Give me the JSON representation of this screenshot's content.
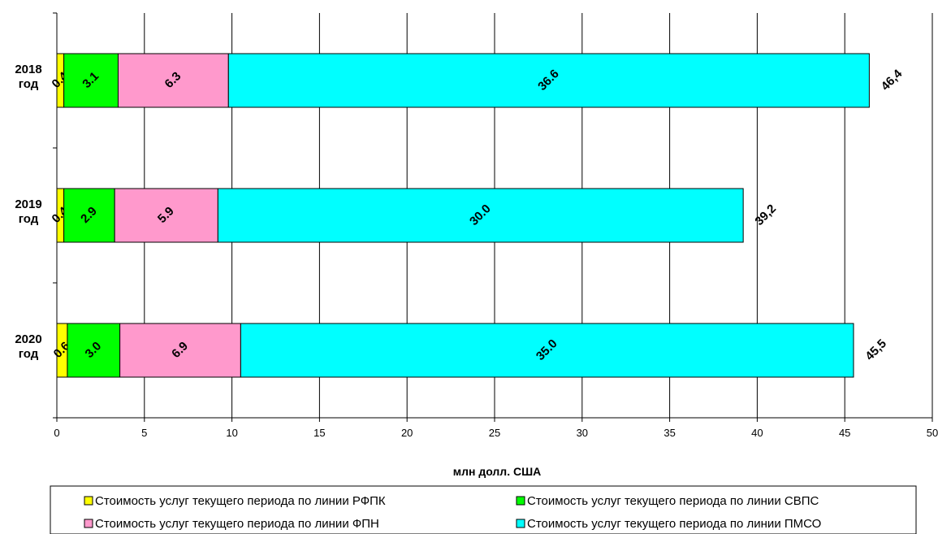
{
  "chart_data": {
    "type": "bar",
    "orientation": "horizontal",
    "stacked": true,
    "categories": [
      "2018 год",
      "2019 год",
      "2020 год"
    ],
    "series": [
      {
        "name": "Стоимость услуг текущего периода по линии РФПК",
        "color": "#ffff00",
        "values": [
          0.4,
          0.4,
          0.6
        ],
        "labels": [
          "0.4",
          "0.4",
          "0.6"
        ]
      },
      {
        "name": "Стоимость услуг текущего периода по линии СВПС",
        "color": "#00ff00",
        "values": [
          3.1,
          2.9,
          3.0
        ],
        "labels": [
          "3.1",
          "2.9",
          "3.0"
        ]
      },
      {
        "name": "Стоимость услуг текущего периода по линии ФПН",
        "color": "#ff99cc",
        "values": [
          6.3,
          5.9,
          6.9
        ],
        "labels": [
          "6.3",
          "5.9",
          "6.9"
        ]
      },
      {
        "name": "Стоимость услуг текущего периода по линии ПМСО",
        "color": "#00ffff",
        "values": [
          36.6,
          30.0,
          35.0
        ],
        "labels": [
          "36.6",
          "30.0",
          "35.0"
        ]
      }
    ],
    "totals": [
      "46,4",
      "39,2",
      "45,5"
    ],
    "xlabel": "млн долл. США",
    "xlim": [
      0,
      50
    ],
    "xticks": [
      "0",
      "5",
      "10",
      "15",
      "20",
      "25",
      "30",
      "35",
      "40",
      "45",
      "50"
    ],
    "grid": "vertical",
    "legend_position": "bottom"
  }
}
